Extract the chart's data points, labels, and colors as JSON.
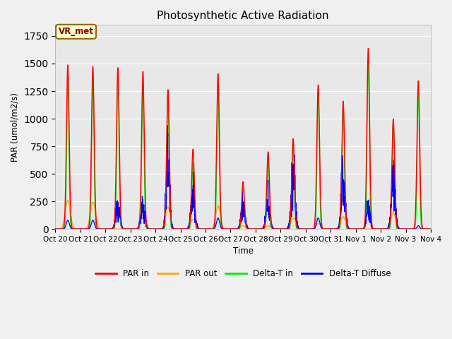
{
  "title": "Photosynthetic Active Radiation",
  "ylabel": "PAR (umol/m2/s)",
  "xlabel": "Time",
  "ylim": [
    0,
    1850
  ],
  "plot_bg_color": "#e8e8e8",
  "fig_bg_color": "#f0f0f0",
  "grid_color": "white",
  "annotation_text": "VR_met",
  "annotation_bg": "#ffffcc",
  "annotation_border": "#8B6914",
  "colors": {
    "PAR_in": "#ff0000",
    "PAR_out": "#ffa500",
    "Delta_T_in": "#00ee00",
    "Delta_T_Diffuse": "#0000ff"
  },
  "legend": [
    "PAR in",
    "PAR out",
    "Delta-T in",
    "Delta-T Diffuse"
  ],
  "xtick_labels": [
    "Oct 20",
    "Oct 21",
    "Oct 22",
    "Oct 23",
    "Oct 24",
    "Oct 25",
    "Oct 26",
    "Oct 27",
    "Oct 28",
    "Oct 29",
    "Oct 30",
    "Oct 31",
    "Nov 1",
    "Nov 2",
    "Nov 3",
    "Nov 4"
  ],
  "n_days": 15,
  "pts_per_day": 144,
  "PAR_in_peaks": [
    1490,
    1475,
    1465,
    1430,
    1265,
    725,
    1410,
    430,
    700,
    820,
    1310,
    1160,
    1640,
    1000,
    1345
  ],
  "PAR_out_peaks": [
    260,
    245,
    0,
    130,
    200,
    85,
    210,
    30,
    30,
    100,
    50,
    110,
    0,
    150,
    0
  ],
  "Delta_T_in_peaks": [
    1380,
    1360,
    1350,
    1310,
    1190,
    600,
    1310,
    380,
    650,
    780,
    1250,
    1100,
    1510,
    960,
    1240
  ],
  "DT_Diffuse_peaks": [
    80,
    80,
    220,
    200,
    600,
    310,
    100,
    185,
    210,
    490,
    100,
    430,
    200,
    420,
    30
  ],
  "par_widths": [
    0.055,
    0.055,
    0.055,
    0.055,
    0.055,
    0.055,
    0.055,
    0.055,
    0.055,
    0.055,
    0.055,
    0.055,
    0.055,
    0.055,
    0.055
  ],
  "out_widths": [
    0.1,
    0.1,
    0.0,
    0.1,
    0.09,
    0.1,
    0.09,
    0.08,
    0.08,
    0.1,
    0.08,
    0.1,
    0.0,
    0.1,
    0.0
  ],
  "dtin_widths": [
    0.045,
    0.045,
    0.045,
    0.045,
    0.045,
    0.045,
    0.045,
    0.045,
    0.045,
    0.045,
    0.045,
    0.045,
    0.045,
    0.045,
    0.045
  ],
  "diff_widths": [
    0.06,
    0.06,
    0.08,
    0.08,
    0.07,
    0.08,
    0.06,
    0.08,
    0.08,
    0.08,
    0.06,
    0.08,
    0.07,
    0.08,
    0.05
  ],
  "diff_has_noise": [
    false,
    false,
    true,
    true,
    true,
    true,
    false,
    true,
    true,
    true,
    false,
    true,
    true,
    true,
    false
  ]
}
